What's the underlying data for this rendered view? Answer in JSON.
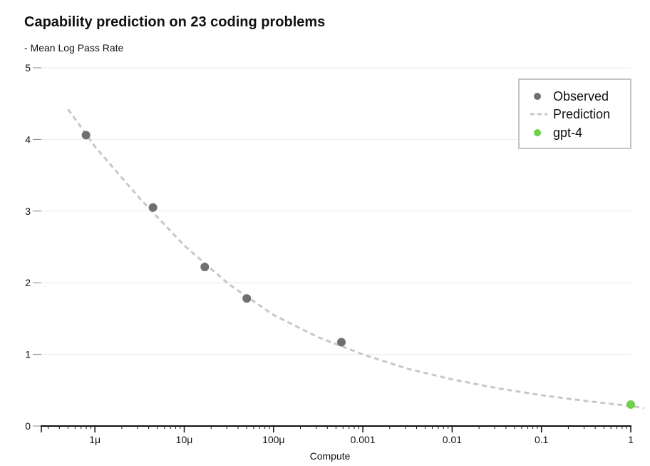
{
  "chart_data": {
    "type": "scatter",
    "title": "Capability prediction on 23 coding problems",
    "subtitle": "- Mean Log Pass Rate",
    "xlabel": "Compute",
    "ylabel": "",
    "x_scale": "log",
    "xlim_log10": [
      -6.6,
      0
    ],
    "ylim": [
      0,
      5
    ],
    "grid": true,
    "y_ticks": [
      {
        "value": 0,
        "label": "0"
      },
      {
        "value": 1,
        "label": "1"
      },
      {
        "value": 2,
        "label": "2"
      },
      {
        "value": 3,
        "label": "3"
      },
      {
        "value": 4,
        "label": "4"
      },
      {
        "value": 5,
        "label": "5"
      }
    ],
    "x_ticks": [
      {
        "log10": -6,
        "label": "1μ"
      },
      {
        "log10": -5,
        "label": "10μ"
      },
      {
        "log10": -4,
        "label": "100μ"
      },
      {
        "log10": -3,
        "label": "0.001"
      },
      {
        "log10": -2,
        "label": "0.01"
      },
      {
        "log10": -1,
        "label": "0.1"
      },
      {
        "log10": 0,
        "label": "1"
      }
    ],
    "legend": {
      "position": "top-right",
      "entries": [
        {
          "key": "observed",
          "label": "Observed"
        },
        {
          "key": "prediction",
          "label": "Prediction"
        },
        {
          "key": "gpt4",
          "label": "gpt-4"
        }
      ]
    },
    "series": [
      {
        "name": "Observed",
        "style": "points",
        "color": "#707070",
        "points": [
          {
            "log10x": -6.1,
            "y": 4.06
          },
          {
            "log10x": -5.35,
            "y": 3.05
          },
          {
            "log10x": -4.77,
            "y": 2.22
          },
          {
            "log10x": -4.3,
            "y": 1.78
          },
          {
            "log10x": -3.24,
            "y": 1.17
          }
        ]
      },
      {
        "name": "Prediction",
        "style": "dashed-line",
        "color": "#c8c8c8",
        "points": [
          {
            "log10x": -6.3,
            "y": 4.42
          },
          {
            "log10x": -6.0,
            "y": 3.9
          },
          {
            "log10x": -5.5,
            "y": 3.18
          },
          {
            "log10x": -5.0,
            "y": 2.52
          },
          {
            "log10x": -4.5,
            "y": 1.98
          },
          {
            "log10x": -4.0,
            "y": 1.55
          },
          {
            "log10x": -3.5,
            "y": 1.24
          },
          {
            "log10x": -3.0,
            "y": 1.0
          },
          {
            "log10x": -2.5,
            "y": 0.8
          },
          {
            "log10x": -2.0,
            "y": 0.65
          },
          {
            "log10x": -1.5,
            "y": 0.53
          },
          {
            "log10x": -1.0,
            "y": 0.43
          },
          {
            "log10x": -0.5,
            "y": 0.35
          },
          {
            "log10x": 0.0,
            "y": 0.28
          },
          {
            "log10x": 0.15,
            "y": 0.25
          }
        ]
      },
      {
        "name": "gpt-4",
        "style": "points",
        "color": "#6fd04c",
        "points": [
          {
            "log10x": 0.0,
            "y": 0.3
          }
        ]
      }
    ]
  }
}
